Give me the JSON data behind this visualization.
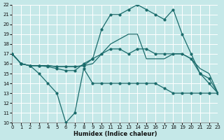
{
  "xlabel": "Humidex (Indice chaleur)",
  "bg_color": "#c5e8e8",
  "grid_color": "#ffffff",
  "line_color": "#1a6b6b",
  "xlim": [
    0,
    23
  ],
  "ylim": [
    10,
    22
  ],
  "xticks": [
    0,
    1,
    2,
    3,
    4,
    5,
    6,
    7,
    8,
    9,
    10,
    11,
    12,
    13,
    14,
    15,
    16,
    17,
    18,
    19,
    20,
    21,
    22,
    23
  ],
  "yticks": [
    10,
    11,
    12,
    13,
    14,
    15,
    16,
    17,
    18,
    19,
    20,
    21,
    22
  ],
  "line1_y": [
    17,
    16,
    15.8,
    15,
    14,
    13,
    10,
    11,
    15.5,
    14,
    14,
    14,
    14,
    14,
    14,
    14,
    14,
    13.5,
    13,
    13,
    13,
    13,
    13,
    13
  ],
  "line2_y": [
    17,
    16,
    15.8,
    15.8,
    15.7,
    15.5,
    15.3,
    15.3,
    16,
    16.5,
    17,
    17.5,
    17.5,
    17,
    17.5,
    17.5,
    17,
    17,
    17,
    17,
    16.5,
    15,
    14.5,
    13
  ],
  "line3_y": [
    17,
    16,
    15.8,
    15.8,
    15.8,
    15.7,
    15.7,
    15.7,
    15.8,
    16,
    17,
    18,
    18.5,
    19,
    19,
    16.5,
    16.5,
    16.5,
    17,
    17,
    16.5,
    15.5,
    15,
    13
  ],
  "line4_y": [
    17,
    16,
    15.8,
    15.8,
    15.8,
    15.7,
    15.7,
    15.7,
    15.8,
    16.5,
    19.5,
    21,
    21,
    21.5,
    22,
    21.5,
    21,
    20.5,
    21.5,
    19,
    17,
    15,
    14,
    13
  ],
  "lw": 0.9,
  "ms": 2.0
}
